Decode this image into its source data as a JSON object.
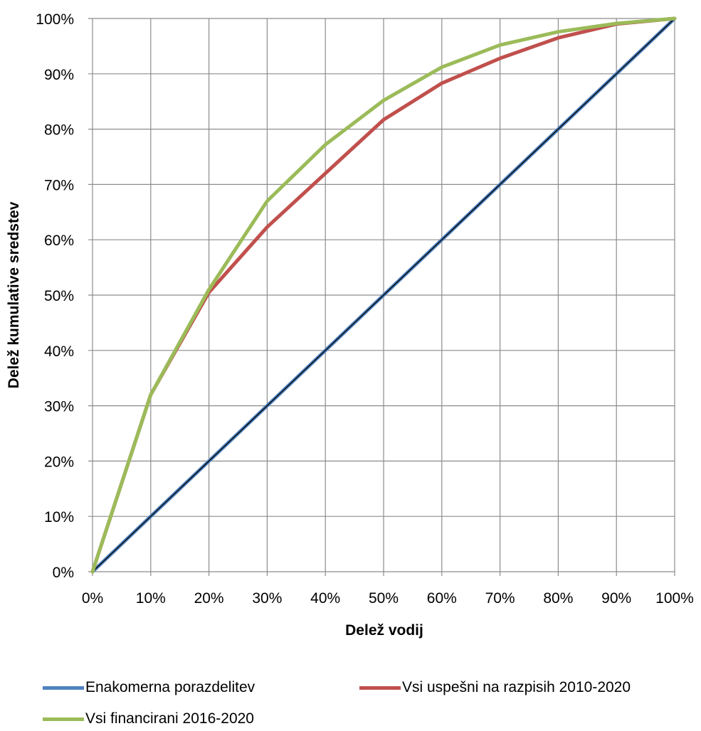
{
  "chart_data": {
    "type": "line",
    "xlabel": "Delež vodij",
    "ylabel": "Delež kumulative sredstev",
    "x": [
      0,
      10,
      20,
      30,
      40,
      50,
      60,
      70,
      80,
      90,
      100
    ],
    "x_tick_labels": [
      "0%",
      "10%",
      "20%",
      "30%",
      "40%",
      "50%",
      "60%",
      "70%",
      "80%",
      "90%",
      "100%"
    ],
    "y_tick_labels": [
      "0%",
      "10%",
      "20%",
      "30%",
      "40%",
      "50%",
      "60%",
      "70%",
      "80%",
      "90%",
      "100%"
    ],
    "xlim": [
      0,
      100
    ],
    "ylim": [
      0,
      100
    ],
    "grid": true,
    "legend_position": "bottom",
    "series": [
      {
        "name": "Enakomerna porazdelitev",
        "color": "#4f81bd",
        "values": [
          0,
          10,
          20,
          30,
          40,
          50,
          60,
          70,
          80,
          90,
          100
        ]
      },
      {
        "name": "Vsi uspešni na razpisih 2010-2020",
        "color": "#c0504d",
        "values": [
          0,
          32,
          50.5,
          62.3,
          72,
          81.7,
          88.3,
          92.8,
          96.5,
          99,
          100
        ]
      },
      {
        "name": "Vsi financirani 2016-2020",
        "color": "#9bbb59",
        "values": [
          0,
          32,
          51,
          67,
          77.2,
          85.2,
          91.2,
          95.2,
          97.6,
          99.1,
          100
        ]
      }
    ]
  }
}
